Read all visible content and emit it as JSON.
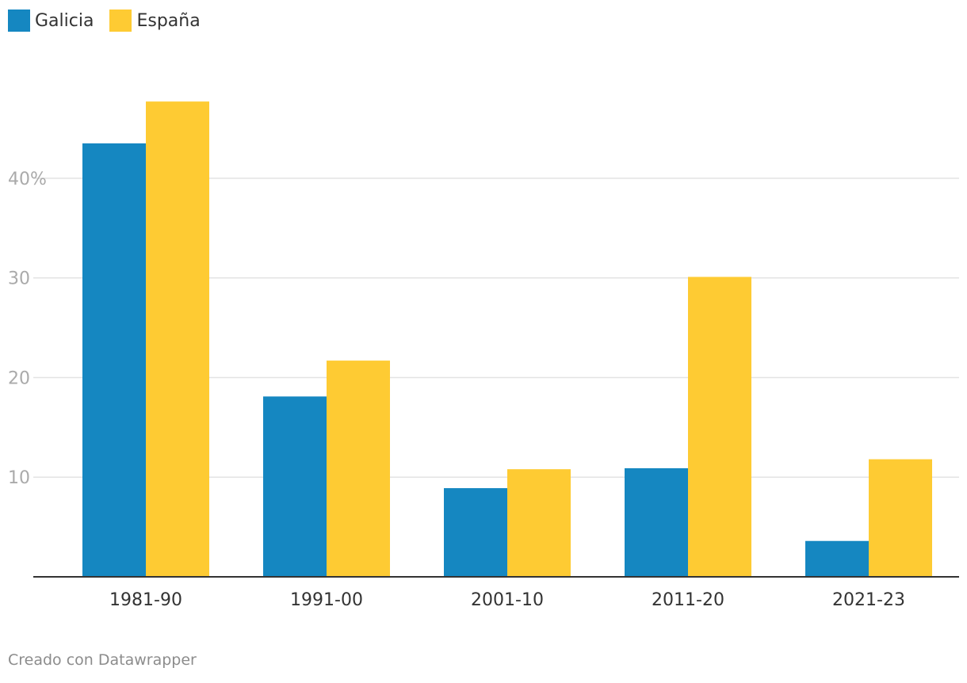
{
  "legend": [
    {
      "label": "Galicia",
      "color": "#1587c1"
    },
    {
      "label": "España",
      "color": "#fecb33"
    }
  ],
  "footer": "Creado con Datawrapper",
  "chart_data": {
    "type": "bar",
    "categories": [
      "1981-90",
      "1991-00",
      "2001-10",
      "2011-20",
      "2021-23"
    ],
    "series": [
      {
        "name": "Galicia",
        "color": "#1587c1",
        "values": [
          43.5,
          18.1,
          8.9,
          10.9,
          3.6
        ]
      },
      {
        "name": "España",
        "color": "#fecb33",
        "values": [
          47.7,
          21.7,
          10.8,
          30.1,
          11.8
        ]
      }
    ],
    "yticks": [
      10,
      20,
      30,
      40
    ],
    "ytick_labels": [
      "10",
      "20",
      "30",
      "40%"
    ],
    "ylim": [
      0,
      50
    ],
    "grid": true,
    "legend_position": "top-left"
  }
}
